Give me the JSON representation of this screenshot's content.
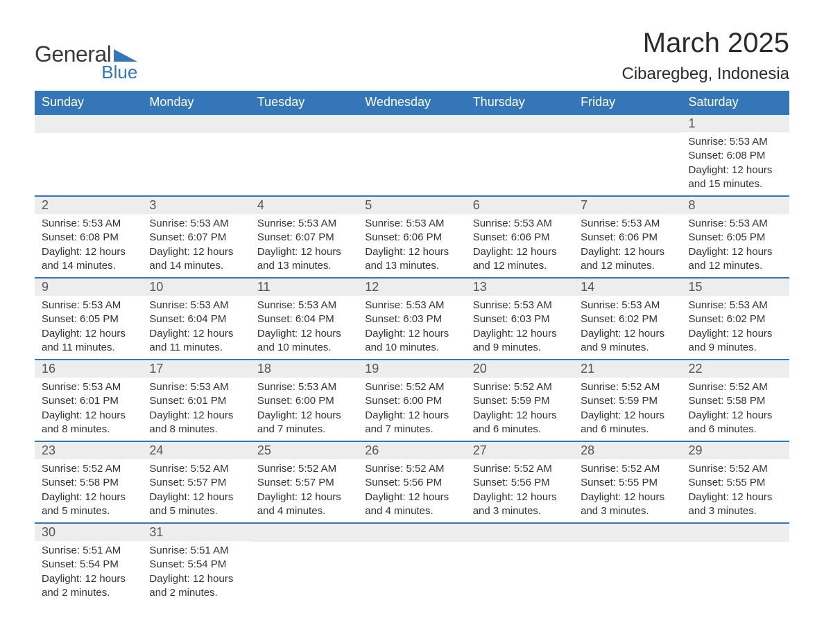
{
  "logo": {
    "text_general": "General",
    "text_blue": "Blue",
    "colors": {
      "general": "#3b3b3b",
      "blue": "#3476b8"
    }
  },
  "title": "March 2025",
  "subtitle": "Cibaregbeg, Indonesia",
  "colors": {
    "header_bg": "#3476b8",
    "header_text": "#ffffff",
    "row_divider": "#3476b8",
    "daynum_bg": "#ededed",
    "text": "#333333",
    "background": "#ffffff"
  },
  "typography": {
    "title_fontsize": 40,
    "subtitle_fontsize": 24,
    "header_fontsize": 18,
    "daynum_fontsize": 18,
    "body_fontsize": 15
  },
  "day_headers": [
    "Sunday",
    "Monday",
    "Tuesday",
    "Wednesday",
    "Thursday",
    "Friday",
    "Saturday"
  ],
  "weeks": [
    [
      null,
      null,
      null,
      null,
      null,
      null,
      {
        "n": "1",
        "sunrise": "5:53 AM",
        "sunset": "6:08 PM",
        "daylight": "12 hours and 15 minutes."
      }
    ],
    [
      {
        "n": "2",
        "sunrise": "5:53 AM",
        "sunset": "6:08 PM",
        "daylight": "12 hours and 14 minutes."
      },
      {
        "n": "3",
        "sunrise": "5:53 AM",
        "sunset": "6:07 PM",
        "daylight": "12 hours and 14 minutes."
      },
      {
        "n": "4",
        "sunrise": "5:53 AM",
        "sunset": "6:07 PM",
        "daylight": "12 hours and 13 minutes."
      },
      {
        "n": "5",
        "sunrise": "5:53 AM",
        "sunset": "6:06 PM",
        "daylight": "12 hours and 13 minutes."
      },
      {
        "n": "6",
        "sunrise": "5:53 AM",
        "sunset": "6:06 PM",
        "daylight": "12 hours and 12 minutes."
      },
      {
        "n": "7",
        "sunrise": "5:53 AM",
        "sunset": "6:06 PM",
        "daylight": "12 hours and 12 minutes."
      },
      {
        "n": "8",
        "sunrise": "5:53 AM",
        "sunset": "6:05 PM",
        "daylight": "12 hours and 12 minutes."
      }
    ],
    [
      {
        "n": "9",
        "sunrise": "5:53 AM",
        "sunset": "6:05 PM",
        "daylight": "12 hours and 11 minutes."
      },
      {
        "n": "10",
        "sunrise": "5:53 AM",
        "sunset": "6:04 PM",
        "daylight": "12 hours and 11 minutes."
      },
      {
        "n": "11",
        "sunrise": "5:53 AM",
        "sunset": "6:04 PM",
        "daylight": "12 hours and 10 minutes."
      },
      {
        "n": "12",
        "sunrise": "5:53 AM",
        "sunset": "6:03 PM",
        "daylight": "12 hours and 10 minutes."
      },
      {
        "n": "13",
        "sunrise": "5:53 AM",
        "sunset": "6:03 PM",
        "daylight": "12 hours and 9 minutes."
      },
      {
        "n": "14",
        "sunrise": "5:53 AM",
        "sunset": "6:02 PM",
        "daylight": "12 hours and 9 minutes."
      },
      {
        "n": "15",
        "sunrise": "5:53 AM",
        "sunset": "6:02 PM",
        "daylight": "12 hours and 9 minutes."
      }
    ],
    [
      {
        "n": "16",
        "sunrise": "5:53 AM",
        "sunset": "6:01 PM",
        "daylight": "12 hours and 8 minutes."
      },
      {
        "n": "17",
        "sunrise": "5:53 AM",
        "sunset": "6:01 PM",
        "daylight": "12 hours and 8 minutes."
      },
      {
        "n": "18",
        "sunrise": "5:53 AM",
        "sunset": "6:00 PM",
        "daylight": "12 hours and 7 minutes."
      },
      {
        "n": "19",
        "sunrise": "5:52 AM",
        "sunset": "6:00 PM",
        "daylight": "12 hours and 7 minutes."
      },
      {
        "n": "20",
        "sunrise": "5:52 AM",
        "sunset": "5:59 PM",
        "daylight": "12 hours and 6 minutes."
      },
      {
        "n": "21",
        "sunrise": "5:52 AM",
        "sunset": "5:59 PM",
        "daylight": "12 hours and 6 minutes."
      },
      {
        "n": "22",
        "sunrise": "5:52 AM",
        "sunset": "5:58 PM",
        "daylight": "12 hours and 6 minutes."
      }
    ],
    [
      {
        "n": "23",
        "sunrise": "5:52 AM",
        "sunset": "5:58 PM",
        "daylight": "12 hours and 5 minutes."
      },
      {
        "n": "24",
        "sunrise": "5:52 AM",
        "sunset": "5:57 PM",
        "daylight": "12 hours and 5 minutes."
      },
      {
        "n": "25",
        "sunrise": "5:52 AM",
        "sunset": "5:57 PM",
        "daylight": "12 hours and 4 minutes."
      },
      {
        "n": "26",
        "sunrise": "5:52 AM",
        "sunset": "5:56 PM",
        "daylight": "12 hours and 4 minutes."
      },
      {
        "n": "27",
        "sunrise": "5:52 AM",
        "sunset": "5:56 PM",
        "daylight": "12 hours and 3 minutes."
      },
      {
        "n": "28",
        "sunrise": "5:52 AM",
        "sunset": "5:55 PM",
        "daylight": "12 hours and 3 minutes."
      },
      {
        "n": "29",
        "sunrise": "5:52 AM",
        "sunset": "5:55 PM",
        "daylight": "12 hours and 3 minutes."
      }
    ],
    [
      {
        "n": "30",
        "sunrise": "5:51 AM",
        "sunset": "5:54 PM",
        "daylight": "12 hours and 2 minutes."
      },
      {
        "n": "31",
        "sunrise": "5:51 AM",
        "sunset": "5:54 PM",
        "daylight": "12 hours and 2 minutes."
      },
      null,
      null,
      null,
      null,
      null
    ]
  ],
  "labels": {
    "sunrise": "Sunrise: ",
    "sunset": "Sunset: ",
    "daylight": "Daylight: "
  }
}
